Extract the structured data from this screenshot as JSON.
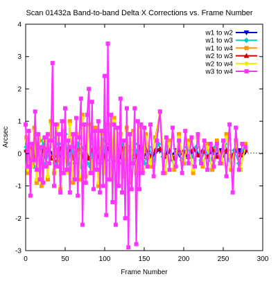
{
  "chart_data": {
    "type": "line",
    "title": "Scan 01432a Band-to-band Delta X Corrections vs. Frame Number",
    "xlabel": "Frame Number",
    "ylabel": "Arcsec",
    "xlim": [
      0,
      300
    ],
    "ylim": [
      -3,
      4
    ],
    "xticks": [
      0,
      50,
      100,
      150,
      200,
      250,
      300
    ],
    "yticks": [
      -3,
      -2,
      -1,
      0,
      1,
      2,
      3,
      4
    ],
    "grid": false,
    "legend_position": "top-right",
    "series": [
      {
        "name": "w1 to w2",
        "color": "#0000cc",
        "marker": "triangle-down",
        "x": [
          1,
          5,
          10,
          15,
          20,
          25,
          30,
          35,
          40,
          45,
          50,
          55,
          60,
          65,
          70,
          75,
          80,
          85,
          90,
          95,
          100,
          105,
          110,
          115,
          120,
          125,
          130,
          135,
          140,
          145,
          150,
          155,
          160,
          165,
          170,
          175,
          180,
          185,
          190,
          195,
          200,
          205,
          210,
          215,
          220,
          225,
          230,
          235,
          240,
          245,
          250,
          255,
          260,
          265,
          270,
          275,
          278
        ],
        "values": [
          0.05,
          -0.1,
          0.1,
          -0.05,
          0.1,
          -0.1,
          0.15,
          -0.05,
          0.1,
          -0.1,
          0.05,
          0.1,
          -0.1,
          0.15,
          -0.05,
          0.1,
          -0.15,
          0.05,
          0.1,
          -0.1,
          0.05,
          0.1,
          -0.05,
          0.1,
          -0.1,
          0.05,
          0.1,
          -0.1,
          0.05,
          0.1,
          -0.05,
          0.05,
          -0.1,
          0.05,
          0.1,
          -0.05,
          0.05,
          -0.05,
          0.1,
          -0.05,
          0.05,
          -0.1,
          0.05,
          0.1,
          -0.05,
          0.05,
          -0.1,
          0.05,
          -0.05,
          0.1,
          -0.05,
          0.05,
          -0.1,
          0.05,
          0.1,
          -0.05,
          0.05
        ]
      },
      {
        "name": "w1 to w3",
        "color": "#00cccc",
        "marker": "diamond",
        "x": [
          1,
          3,
          6,
          10,
          14,
          18,
          22,
          26,
          30,
          34,
          38,
          42,
          46,
          50,
          54,
          58,
          62,
          66,
          70,
          74,
          78,
          82,
          86,
          90,
          94,
          98,
          102,
          106,
          110,
          114,
          118,
          122,
          126,
          130,
          134,
          138,
          142,
          146,
          150,
          156,
          162,
          168,
          174,
          180,
          186,
          192,
          198,
          204,
          210,
          216,
          222,
          228,
          234,
          240,
          246,
          252,
          258,
          264,
          270,
          276
        ],
        "values": [
          0.2,
          -0.3,
          0.1,
          -0.4,
          0.3,
          -0.2,
          0.4,
          -0.3,
          0.2,
          0.5,
          -0.4,
          0.3,
          -0.2,
          0.6,
          -0.3,
          0.2,
          -0.3,
          0.3,
          -0.4,
          0.2,
          -0.3,
          -0.4,
          0.3,
          0.2,
          -0.3,
          0.4,
          -0.2,
          0.3,
          -0.4,
          0.2,
          -0.3,
          0.3,
          -0.2,
          0.2,
          -0.3,
          0.3,
          -0.2,
          0.2,
          -0.3,
          0.2,
          -0.2,
          0.3,
          -0.1,
          0.2,
          -0.2,
          0.1,
          -0.2,
          0.2,
          -0.1,
          0.2,
          -0.2,
          0.1,
          -0.2,
          0.2,
          -0.1,
          0.3,
          -0.2,
          0.1,
          -0.3,
          0.1
        ]
      },
      {
        "name": "w1 to w4",
        "color": "#ff9900",
        "marker": "square",
        "x": [
          1,
          3,
          5,
          8,
          11,
          14,
          17,
          20,
          24,
          28,
          32,
          36,
          40,
          44,
          48,
          52,
          56,
          60,
          64,
          68,
          72,
          76,
          80,
          84,
          88,
          92,
          96,
          100,
          104,
          108,
          112,
          116,
          120,
          124,
          128,
          132,
          136,
          140,
          144,
          148,
          152,
          158,
          164,
          170,
          176,
          182,
          188,
          194,
          200,
          206,
          212,
          218,
          224,
          230,
          236,
          242,
          248,
          254,
          260,
          266,
          272,
          278
        ],
        "values": [
          0.5,
          -0.6,
          0.3,
          -0.3,
          0.8,
          -0.9,
          0.4,
          -1.0,
          0.5,
          -0.8,
          1.0,
          -0.6,
          0.9,
          -1.1,
          0.7,
          -0.5,
          1.0,
          -0.9,
          0.6,
          -0.8,
          1.2,
          -0.7,
          0.9,
          -0.6,
          0.8,
          -1.0,
          0.7,
          -0.5,
          0.9,
          -0.8,
          1.1,
          -0.9,
          0.6,
          -0.7,
          0.8,
          -0.9,
          0.7,
          -0.6,
          0.8,
          -0.5,
          0.6,
          -0.4,
          0.5,
          1.3,
          -0.6,
          0.4,
          -0.5,
          0.6,
          -0.3,
          0.4,
          -0.6,
          0.5,
          -0.4,
          0.3,
          -0.5,
          0.4,
          -0.3,
          0.6,
          -0.5,
          0.4,
          -0.5,
          0.3
        ]
      },
      {
        "name": "w2 to w3",
        "color": "#cc0000",
        "marker": "triangle-up",
        "x": [
          1,
          4,
          8,
          12,
          16,
          20,
          24,
          28,
          32,
          36,
          40,
          44,
          48,
          52,
          56,
          60,
          64,
          68,
          72,
          76,
          80,
          84,
          88,
          92,
          96,
          100,
          104,
          108,
          112,
          116,
          120,
          124,
          128,
          132,
          136,
          140,
          144,
          148,
          152,
          158,
          164,
          170,
          176,
          182,
          188,
          194,
          200,
          206,
          212,
          218,
          224,
          230,
          236,
          242,
          248,
          254,
          260,
          266,
          272,
          278
        ],
        "values": [
          0.1,
          -0.15,
          0.2,
          -0.1,
          0.15,
          -0.2,
          0.1,
          0.2,
          -0.15,
          0.1,
          -0.2,
          0.15,
          0.1,
          -0.1,
          0.2,
          -0.15,
          0.1,
          0.15,
          -0.1,
          0.2,
          -0.15,
          0.1,
          0.15,
          -0.1,
          0.2,
          -0.1,
          0.15,
          0.1,
          -0.2,
          0.15,
          -0.1,
          0.2,
          -0.15,
          0.1,
          0.15,
          -0.1,
          0.2,
          -0.1,
          0.15,
          -0.1,
          0.1,
          0.15,
          -0.1,
          0.1,
          -0.15,
          0.1,
          0.05,
          -0.1,
          0.15,
          -0.05,
          0.1,
          -0.1,
          0.15,
          -0.1,
          0.05,
          0.1,
          -0.1,
          0.15,
          -0.05,
          0.1
        ]
      },
      {
        "name": "w2 to w4",
        "color": "#eeee00",
        "marker": "circle",
        "x": [
          1,
          3,
          5,
          8,
          11,
          14,
          17,
          20,
          24,
          28,
          32,
          36,
          40,
          44,
          48,
          52,
          56,
          60,
          64,
          68,
          72,
          76,
          80,
          84,
          88,
          92,
          96,
          100,
          104,
          108,
          112,
          116,
          120,
          124,
          128,
          132,
          136,
          140,
          144,
          148,
          152,
          158,
          164,
          170,
          176,
          182,
          188,
          194,
          200,
          206,
          212,
          218,
          224,
          230,
          236,
          242,
          248,
          254,
          260,
          266,
          272,
          278
        ],
        "values": [
          0.4,
          -0.5,
          0.3,
          -0.4,
          0.7,
          -0.8,
          0.5,
          -0.9,
          0.4,
          -0.7,
          0.9,
          -0.5,
          0.8,
          -1.0,
          0.6,
          -0.6,
          0.9,
          -0.8,
          0.5,
          -0.7,
          1.1,
          -0.6,
          0.8,
          -0.5,
          0.7,
          -0.9,
          0.6,
          -0.6,
          0.8,
          -0.7,
          1.0,
          -0.8,
          0.5,
          -0.6,
          0.7,
          -0.8,
          0.6,
          -0.5,
          0.7,
          -0.4,
          0.5,
          -0.3,
          0.4,
          1.25,
          -0.5,
          0.3,
          -0.4,
          0.5,
          -0.2,
          0.3,
          -0.5,
          0.4,
          -0.3,
          0.2,
          -0.4,
          0.3,
          -0.2,
          0.5,
          -0.4,
          0.3,
          -0.5,
          0.2
        ]
      },
      {
        "name": "w3 to w4",
        "color": "#ff33ff",
        "marker": "square",
        "x": [
          0,
          2,
          4,
          6,
          8,
          10,
          12,
          14,
          16,
          18,
          20,
          22,
          24,
          26,
          28,
          30,
          32,
          34,
          36,
          38,
          40,
          42,
          44,
          46,
          48,
          50,
          52,
          54,
          56,
          58,
          60,
          62,
          64,
          66,
          68,
          70,
          72,
          74,
          76,
          78,
          80,
          82,
          84,
          86,
          88,
          90,
          92,
          94,
          96,
          98,
          100,
          102,
          104,
          106,
          108,
          110,
          112,
          114,
          116,
          118,
          120,
          122,
          124,
          126,
          128,
          130,
          132,
          134,
          136,
          138,
          140,
          142,
          144,
          146,
          148,
          150,
          154,
          158,
          162,
          166,
          170,
          174,
          178,
          182,
          186,
          190,
          194,
          198,
          202,
          206,
          210,
          214,
          218,
          222,
          226,
          230,
          234,
          238,
          242,
          246,
          250,
          254,
          258,
          262,
          266,
          270,
          274,
          278
        ],
        "values": [
          0.9,
          -0.4,
          0.7,
          -1.3,
          0.3,
          -0.2,
          1.3,
          -0.5,
          0.6,
          -0.8,
          0.2,
          -0.9,
          0.5,
          -0.4,
          0.6,
          -0.3,
          0.4,
          2.8,
          -1.0,
          0.9,
          -0.4,
          0.6,
          -1.2,
          1.0,
          -0.6,
          1.4,
          -0.5,
          0.4,
          -1.2,
          0.2,
          0.6,
          -0.8,
          1.1,
          -1.3,
          0.5,
          1.7,
          -2.2,
          0.9,
          -0.9,
          1.2,
          2.0,
          -0.6,
          1.6,
          -1.1,
          0.7,
          -0.5,
          1.0,
          -1.2,
          0.7,
          -1.0,
          2.4,
          -1.9,
          3.4,
          -0.8,
          1.2,
          -1.5,
          0.9,
          -2.2,
          0.8,
          -1.0,
          1.7,
          -1.2,
          0.4,
          -2.0,
          1.4,
          -2.9,
          0.6,
          -1.1,
          -0.3,
          1.4,
          -2.8,
          1.0,
          -1.1,
          0.9,
          -0.6,
          0.8,
          -0.4,
          0.9,
          -0.7,
          0.4,
          1.3,
          -0.6,
          0.5,
          -0.5,
          0.8,
          -0.4,
          0.4,
          -0.6,
          0.7,
          -0.3,
          0.5,
          -0.4,
          0.6,
          -0.3,
          0.4,
          -0.5,
          0.3,
          -0.4,
          0.3,
          -0.3,
          0.4,
          -0.7,
          0.9,
          -1.2,
          0.8,
          -0.5,
          0.3,
          0.2
        ]
      }
    ]
  }
}
